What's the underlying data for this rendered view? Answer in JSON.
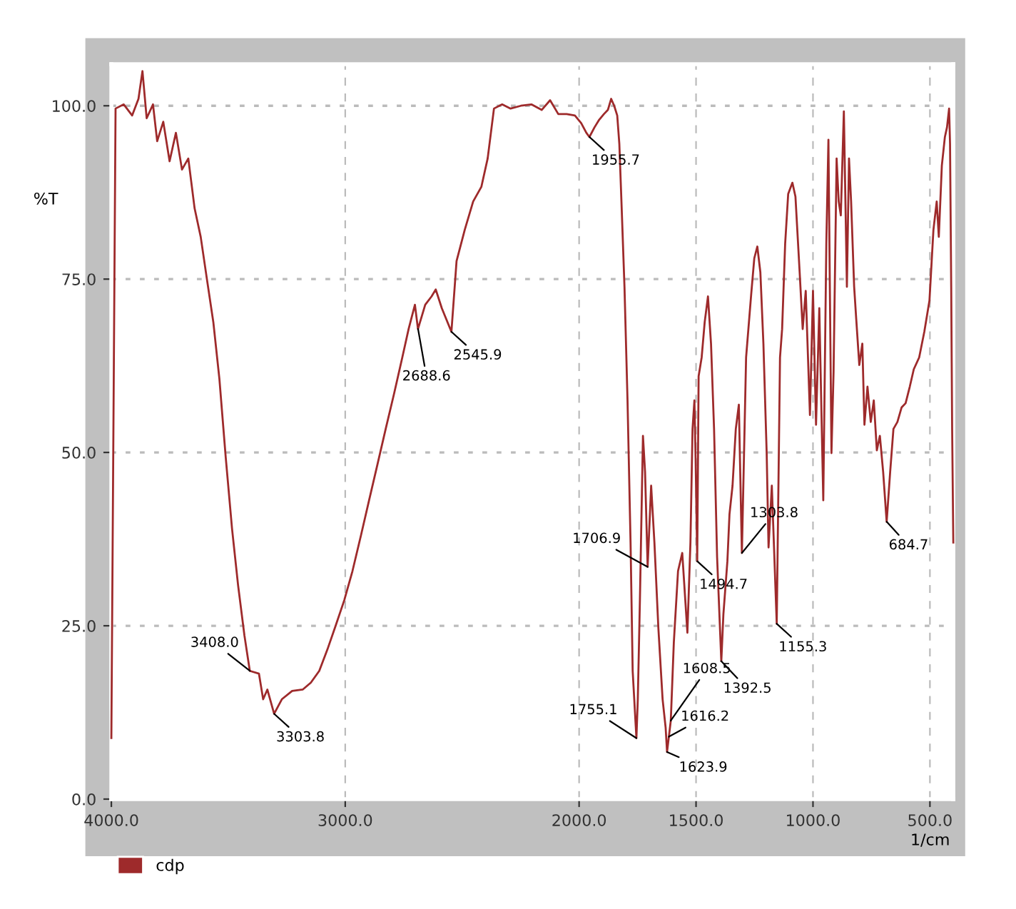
{
  "chart_data": {
    "type": "line",
    "xlabel": "1/cm",
    "ylabel": "%T",
    "xlim": [
      4000,
      400
    ],
    "ylim": [
      0,
      106
    ],
    "xticks": [
      {
        "value": 4000,
        "label": "4000.0"
      },
      {
        "value": 3000,
        "label": "3000.0"
      },
      {
        "value": 2000,
        "label": "2000.0"
      },
      {
        "value": 1500,
        "label": "1500.0"
      },
      {
        "value": 1000,
        "label": "1000.0"
      },
      {
        "value": 500,
        "label": "500.0"
      }
    ],
    "yticks": [
      {
        "value": 0,
        "label": "0.0"
      },
      {
        "value": 25,
        "label": "25.0"
      },
      {
        "value": 50,
        "label": "50.0"
      },
      {
        "value": 75,
        "label": "75.0"
      },
      {
        "value": 100,
        "label": "100.0"
      }
    ],
    "grid": true,
    "legend": "bottom left",
    "line_style": "solid",
    "series": [
      {
        "name": "cdp",
        "color": "#9e2a2b",
        "x": [
          4000,
          3982,
          3947,
          3911,
          3884,
          3867,
          3849,
          3822,
          3804,
          3778,
          3751,
          3724,
          3698,
          3671,
          3644,
          3618,
          3591,
          3564,
          3538,
          3511,
          3484,
          3458,
          3431,
          3408,
          3369,
          3351,
          3333,
          3304,
          3271,
          3227,
          3182,
          3147,
          3111,
          3076,
          3040,
          3004,
          2969,
          2933,
          2898,
          2862,
          2827,
          2791,
          2756,
          2729,
          2702,
          2689,
          2658,
          2631,
          2613,
          2587,
          2546,
          2524,
          2489,
          2453,
          2418,
          2391,
          2364,
          2329,
          2293,
          2249,
          2204,
          2160,
          2124,
          2089,
          2053,
          2018,
          1991,
          1969,
          1956,
          1934,
          1916,
          1894,
          1877,
          1863,
          1850,
          1837,
          1828,
          1819,
          1806,
          1793,
          1780,
          1771,
          1755,
          1749,
          1740,
          1727,
          1718,
          1707,
          1692,
          1678,
          1661,
          1643,
          1630,
          1624,
          1608,
          1595,
          1577,
          1559,
          1546,
          1537,
          1524,
          1515,
          1507,
          1502,
          1495,
          1489,
          1476,
          1463,
          1449,
          1436,
          1423,
          1410,
          1392,
          1383,
          1366,
          1357,
          1344,
          1330,
          1317,
          1304,
          1286,
          1264,
          1251,
          1238,
          1225,
          1212,
          1198,
          1190,
          1176,
          1155,
          1141,
          1132,
          1119,
          1106,
          1088,
          1075,
          1057,
          1044,
          1031,
          1013,
          1000,
          987,
          973,
          956,
          943,
          934,
          921,
          912,
          899,
          890,
          881,
          868,
          855,
          846,
          837,
          824,
          815,
          802,
          789,
          780,
          767,
          753,
          740,
          727,
          714,
          700,
          685,
          670,
          656,
          639,
          621,
          604,
          586,
          569,
          546,
          524,
          502,
          485,
          471,
          462,
          449,
          436,
          427,
          418,
          414,
          409,
          405,
          400
        ],
        "values": [
          8.8,
          99.6,
          100.2,
          98.6,
          101.0,
          105.0,
          98.2,
          100.2,
          94.9,
          97.7,
          92.0,
          96.1,
          90.8,
          92.4,
          85.2,
          81.1,
          74.9,
          68.8,
          60.6,
          49.3,
          39.0,
          30.8,
          23.6,
          18.5,
          18.1,
          14.4,
          15.8,
          12.3,
          14.4,
          15.6,
          15.8,
          16.8,
          18.5,
          21.6,
          25.1,
          28.7,
          32.9,
          38.0,
          43.1,
          48.3,
          53.4,
          58.5,
          63.7,
          67.8,
          71.3,
          67.8,
          71.3,
          72.5,
          73.5,
          70.8,
          67.4,
          77.6,
          82.1,
          86.2,
          88.3,
          92.4,
          99.6,
          100.2,
          99.6,
          100.0,
          100.2,
          99.4,
          100.8,
          98.8,
          98.8,
          98.6,
          97.5,
          96.1,
          95.5,
          96.9,
          97.9,
          98.8,
          99.4,
          101.0,
          100.0,
          98.6,
          94.5,
          86.2,
          73.9,
          57.5,
          37.0,
          18.5,
          8.8,
          14.4,
          28.7,
          52.4,
          47.2,
          33.5,
          45.2,
          37.0,
          24.6,
          14.4,
          10.3,
          6.8,
          11.3,
          22.6,
          32.9,
          35.5,
          28.7,
          24.0,
          37.0,
          53.4,
          57.5,
          49.3,
          34.3,
          61.0,
          63.7,
          68.8,
          72.5,
          65.7,
          53.4,
          34.9,
          19.9,
          26.7,
          34.3,
          41.1,
          45.2,
          53.4,
          56.9,
          35.5,
          63.7,
          72.9,
          78.0,
          79.7,
          76.0,
          65.7,
          49.9,
          36.3,
          45.2,
          25.3,
          63.7,
          67.8,
          80.1,
          87.3,
          88.9,
          86.9,
          76.0,
          67.8,
          73.3,
          55.4,
          73.3,
          54.0,
          70.8,
          43.1,
          80.1,
          95.1,
          49.9,
          61.6,
          92.4,
          86.2,
          84.2,
          99.2,
          73.9,
          92.4,
          86.2,
          73.9,
          69.2,
          62.6,
          65.7,
          54.0,
          59.5,
          54.4,
          57.5,
          50.3,
          52.4,
          47.2,
          40.0,
          47.2,
          53.4,
          54.4,
          56.5,
          57.1,
          59.5,
          62.0,
          63.7,
          67.4,
          71.9,
          82.1,
          86.2,
          81.1,
          91.4,
          95.5,
          96.9,
          99.6,
          94.5,
          73.9,
          53.4,
          37.0
        ]
      }
    ],
    "annotations": [
      {
        "text": "3408.0",
        "x": 3408,
        "y": 18.5
      },
      {
        "text": "3303.8",
        "x": 3303.8,
        "y": 12.3
      },
      {
        "text": "2688.6",
        "x": 2688.6,
        "y": 67.8
      },
      {
        "text": "2545.9",
        "x": 2545.9,
        "y": 67.4
      },
      {
        "text": "1955.7",
        "x": 1955.7,
        "y": 95.5
      },
      {
        "text": "1755.1",
        "x": 1755.1,
        "y": 8.8
      },
      {
        "text": "1706.9",
        "x": 1706.9,
        "y": 33.5
      },
      {
        "text": "1608.5",
        "x": 1608.5,
        "y": 11.3
      },
      {
        "text": "1616.2",
        "x": 1616.2,
        "y": 9.0
      },
      {
        "text": "1623.9",
        "x": 1623.9,
        "y": 6.8
      },
      {
        "text": "1494.7",
        "x": 1494.7,
        "y": 34.3
      },
      {
        "text": "1392.5",
        "x": 1392.5,
        "y": 19.9
      },
      {
        "text": "1303.8",
        "x": 1303.8,
        "y": 35.5
      },
      {
        "text": "1155.3",
        "x": 1155.3,
        "y": 25.3
      },
      {
        "text": "684.7",
        "x": 684.7,
        "y": 40.0
      }
    ]
  }
}
